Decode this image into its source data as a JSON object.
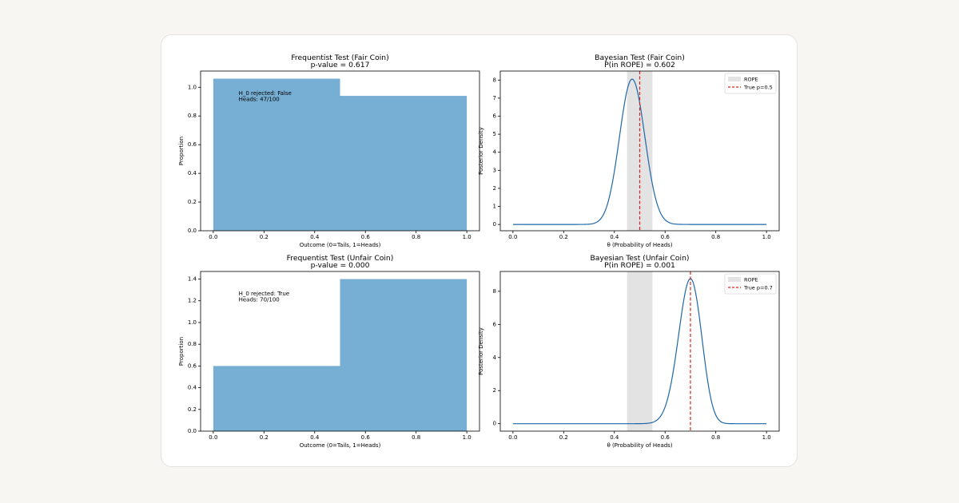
{
  "chart_data": [
    {
      "type": "bar",
      "title": "Frequentist Test (Fair Coin)",
      "subtitle": "p-value = 0.617",
      "xlabel": "Outcome (0=Tails, 1=Heads)",
      "ylabel": "Proportion",
      "bins": [
        [
          0.0,
          0.5
        ],
        [
          0.5,
          1.0
        ]
      ],
      "values": [
        1.06,
        0.94
      ],
      "xlim": [
        -0.05,
        1.05
      ],
      "ylim": [
        0,
        1.113
      ],
      "xticks": [
        0.0,
        0.2,
        0.4,
        0.6,
        0.8,
        1.0
      ],
      "xtick_labels": [
        "0.0",
        "0.2",
        "0.4",
        "0.6",
        "0.8",
        "1.0"
      ],
      "yticks": [
        0.0,
        0.2,
        0.4,
        0.6,
        0.8,
        1.0
      ],
      "ytick_labels": [
        "0.0",
        "0.2",
        "0.4",
        "0.6",
        "0.8",
        "1.0"
      ],
      "annotation_lines": [
        "H_0 rejected: False",
        "Heads: 47/100"
      ],
      "annotation_at": [
        0.1,
        0.86
      ],
      "color": "#77aed3"
    },
    {
      "type": "line",
      "title": "Bayesian Test (Fair Coin)",
      "subtitle": "P(in ROPE) = 0.602",
      "xlabel": "θ (Probability of Heads)",
      "ylabel": "Posterior Density",
      "beta": [
        48,
        54
      ],
      "rope": [
        0.45,
        0.55
      ],
      "true_p": 0.5,
      "xlim": [
        -0.05,
        1.05
      ],
      "ylim": [
        -0.35,
        8.5
      ],
      "xticks": [
        0.0,
        0.2,
        0.4,
        0.6,
        0.8,
        1.0
      ],
      "xtick_labels": [
        "0.0",
        "0.2",
        "0.4",
        "0.6",
        "0.8",
        "1.0"
      ],
      "yticks": [
        0,
        1,
        2,
        3,
        4,
        5,
        6,
        7,
        8
      ],
      "ytick_labels": [
        "0",
        "1",
        "2",
        "3",
        "4",
        "5",
        "6",
        "7",
        "8"
      ],
      "legend": [
        "ROPE",
        "True p=0.5"
      ],
      "legend_position": "upper right",
      "line_color": "#1f67a6",
      "rope_color": "#e3e3e3",
      "true_color": "#e0221a"
    },
    {
      "type": "bar",
      "title": "Frequentist Test (Unfair Coin)",
      "subtitle": "p-value = 0.000",
      "xlabel": "Outcome (0=Tails, 1=Heads)",
      "ylabel": "Proportion",
      "bins": [
        [
          0.0,
          0.5
        ],
        [
          0.5,
          1.0
        ]
      ],
      "values": [
        0.6,
        1.4
      ],
      "xlim": [
        -0.05,
        1.05
      ],
      "ylim": [
        0,
        1.47
      ],
      "xticks": [
        0.0,
        0.2,
        0.4,
        0.6,
        0.8,
        1.0
      ],
      "xtick_labels": [
        "0.0",
        "0.2",
        "0.4",
        "0.6",
        "0.8",
        "1.0"
      ],
      "yticks": [
        0.0,
        0.2,
        0.4,
        0.6,
        0.8,
        1.0,
        1.2,
        1.4
      ],
      "ytick_labels": [
        "0.0",
        "0.2",
        "0.4",
        "0.6",
        "0.8",
        "1.0",
        "1.2",
        "1.4"
      ],
      "annotation_lines": [
        "H_0 rejected: True",
        "Heads: 70/100"
      ],
      "annotation_at": [
        0.1,
        0.86
      ],
      "color": "#77aed3"
    },
    {
      "type": "line",
      "title": "Bayesian Test (Unfair Coin)",
      "subtitle": "P(in ROPE) = 0.001",
      "xlabel": "θ (Probability of Heads)",
      "ylabel": "Posterior Density",
      "beta": [
        71,
        31
      ],
      "rope": [
        0.45,
        0.55
      ],
      "true_p": 0.7,
      "xlim": [
        -0.05,
        1.05
      ],
      "ylim": [
        -0.45,
        9.2
      ],
      "xticks": [
        0.0,
        0.2,
        0.4,
        0.6,
        0.8,
        1.0
      ],
      "xtick_labels": [
        "0.0",
        "0.2",
        "0.4",
        "0.6",
        "0.8",
        "1.0"
      ],
      "yticks": [
        0,
        2,
        4,
        6,
        8
      ],
      "ytick_labels": [
        "0",
        "2",
        "4",
        "6",
        "8"
      ],
      "legend": [
        "ROPE",
        "True p=0.7"
      ],
      "legend_position": "upper right",
      "line_color": "#1f67a6",
      "rope_color": "#e3e3e3",
      "true_color": "#e0221a"
    }
  ]
}
